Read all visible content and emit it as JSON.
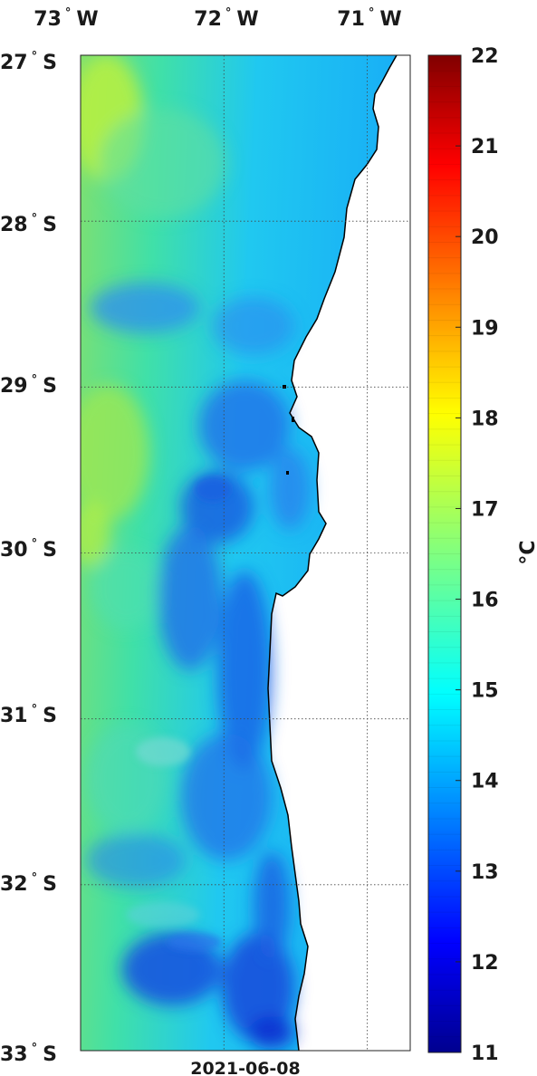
{
  "map": {
    "lon_ticks": [
      {
        "deg": "73",
        "hemi": "W"
      },
      {
        "deg": "72",
        "hemi": "W"
      },
      {
        "deg": "71",
        "hemi": "W"
      }
    ],
    "lat_ticks": [
      {
        "deg": "27",
        "hemi": "S"
      },
      {
        "deg": "28",
        "hemi": "S"
      },
      {
        "deg": "29",
        "hemi": "S"
      },
      {
        "deg": "30",
        "hemi": "S"
      },
      {
        "deg": "31",
        "hemi": "S"
      },
      {
        "deg": "32",
        "hemi": "S"
      },
      {
        "deg": "33",
        "hemi": "S"
      }
    ],
    "lon_range": [
      -73,
      -70.7
    ],
    "lat_range": [
      -33,
      -27
    ],
    "date": "2021-06-08",
    "gridlines": true,
    "land_color": "#ffffff",
    "coast_color": "#000000"
  },
  "colorbar": {
    "min": 11,
    "max": 22,
    "ticks": [
      "11",
      "12",
      "13",
      "14",
      "15",
      "16",
      "17",
      "18",
      "19",
      "20",
      "21",
      "22"
    ],
    "unit": "°C",
    "colormap": "jet"
  }
}
